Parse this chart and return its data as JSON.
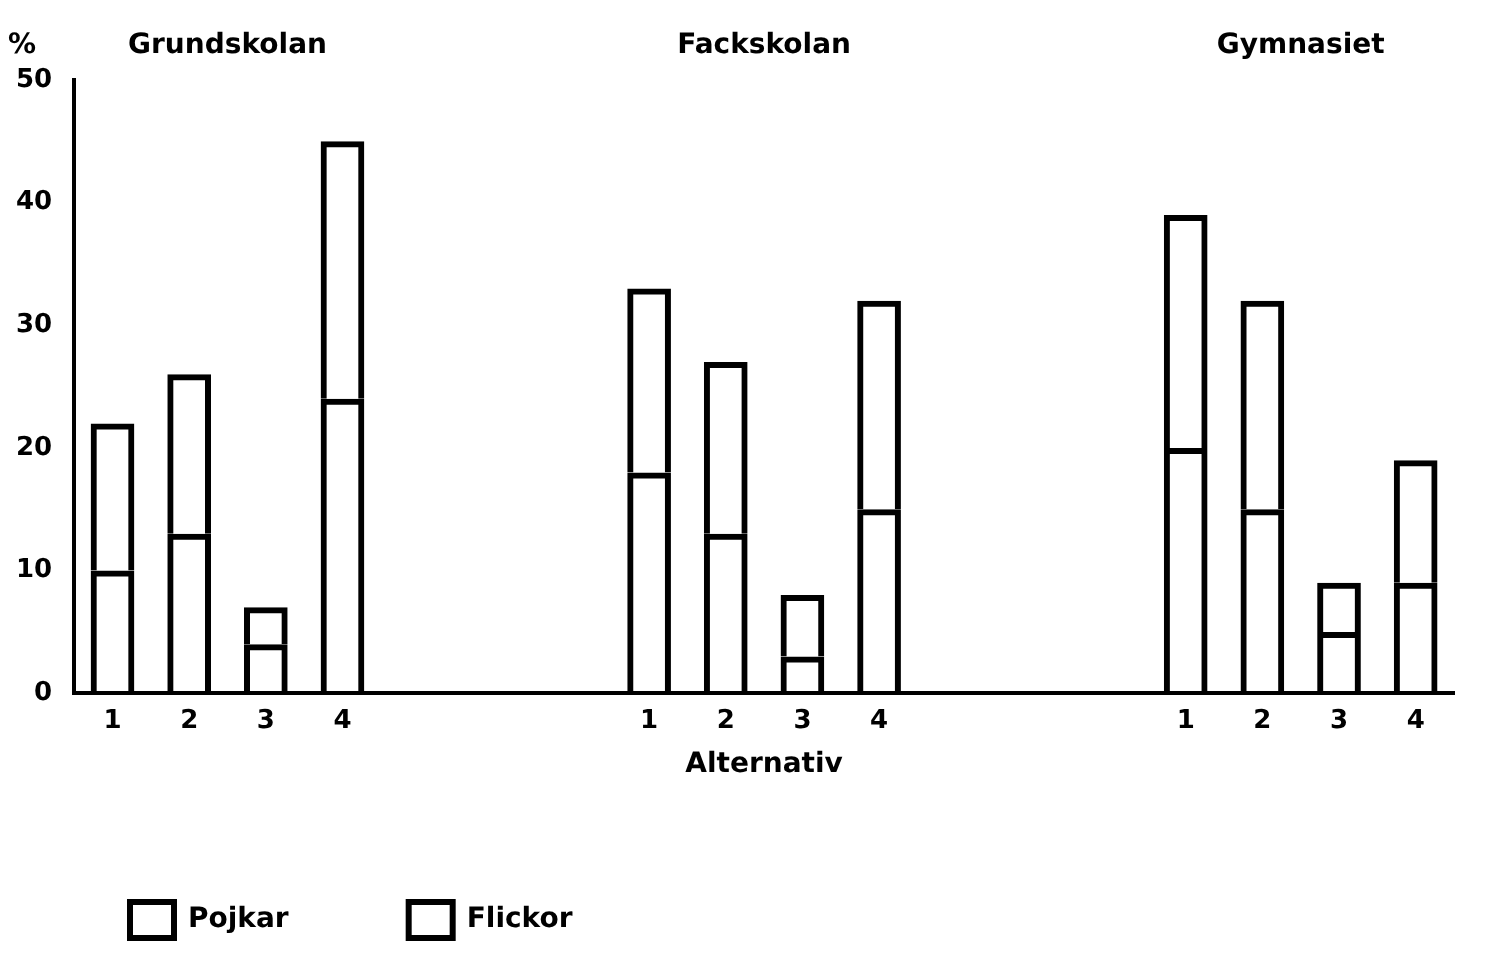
{
  "chart_data": {
    "type": "bar",
    "stacked": true,
    "ylabel": "%",
    "xlabel": "Alternativ",
    "categories": [
      "1",
      "2",
      "3",
      "4",
      null,
      null,
      null,
      "1",
      "2",
      "3",
      "4",
      null,
      null,
      null,
      "1",
      "2",
      "3",
      "4"
    ],
    "series": [
      {
        "name": "Pojkar",
        "color": "#000000",
        "values": [
          10,
          13,
          4,
          24,
          null,
          null,
          null,
          18,
          13,
          3,
          15,
          null,
          null,
          null,
          20,
          15,
          5,
          9
        ]
      },
      {
        "name": "Flickor",
        "color": "#000000",
        "values": [
          12,
          13,
          3,
          21,
          null,
          null,
          null,
          15,
          14,
          5,
          17,
          null,
          null,
          null,
          19,
          17,
          4,
          10
        ]
      }
    ],
    "annotations": [
      "Grundskolan",
      "Fackskolan",
      "Gymnasiet"
    ],
    "ylim": [
      0,
      50
    ],
    "yticks": [
      0,
      10,
      20,
      30,
      40,
      50
    ],
    "grid": false,
    "legend": "bottom left"
  }
}
